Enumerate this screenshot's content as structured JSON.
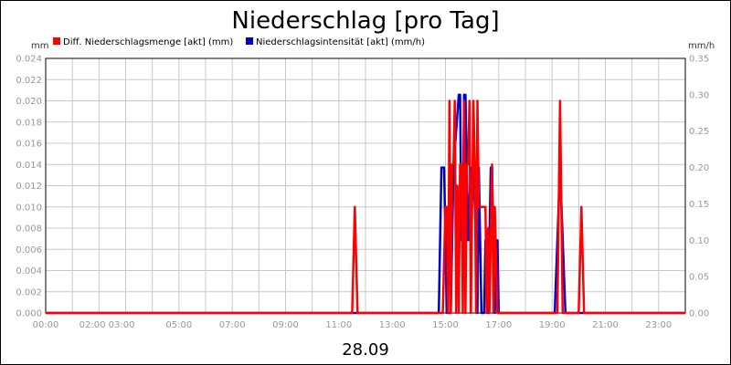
{
  "chart_data": {
    "type": "line",
    "title": "Niederschlag [pro Tag]",
    "xlabel": "28.09",
    "y_left": {
      "unit": "mm",
      "range": [
        0,
        0.024
      ],
      "ticks": [
        "0.000",
        "0.002",
        "0.004",
        "0.006",
        "0.008",
        "0.010",
        "0.012",
        "0.014",
        "0.016",
        "0.018",
        "0.020",
        "0.022",
        "0.024"
      ]
    },
    "y_right": {
      "unit": "mm/h",
      "range": [
        0,
        0.35
      ],
      "ticks": [
        "0.00",
        "0.05",
        "0.10",
        "0.15",
        "0.20",
        "0.25",
        "0.30",
        "0.35"
      ]
    },
    "x_range_hours": [
      0,
      24
    ],
    "x_tick_labels": [
      {
        "h": 0,
        "label": "00:00"
      },
      {
        "h": 2.3,
        "label": "02:00 03:00"
      },
      {
        "h": 5,
        "label": "05:00"
      },
      {
        "h": 7,
        "label": "07:00"
      },
      {
        "h": 9,
        "label": "09:00"
      },
      {
        "h": 11,
        "label": "11:00"
      },
      {
        "h": 13,
        "label": "13:00"
      },
      {
        "h": 15,
        "label": "15:00"
      },
      {
        "h": 17,
        "label": "17:00"
      },
      {
        "h": 19,
        "label": "19:00"
      },
      {
        "h": 21,
        "label": "21:00"
      },
      {
        "h": 23,
        "label": "23:00"
      }
    ],
    "grid": true,
    "legend_position": "top",
    "series": [
      {
        "name": "Diff. Niederschlagsmenge [akt] (mm)",
        "color": "#ff0000",
        "axis": "left",
        "points": [
          [
            0,
            0
          ],
          [
            11.5,
            0
          ],
          [
            11.6,
            0.01
          ],
          [
            11.7,
            0
          ],
          [
            14.9,
            0
          ],
          [
            15.0,
            0.01
          ],
          [
            15.05,
            0.01
          ],
          [
            15.1,
            0
          ],
          [
            15.15,
            0.02
          ],
          [
            15.2,
            0
          ],
          [
            15.25,
            0.014
          ],
          [
            15.3,
            0.014
          ],
          [
            15.35,
            0.02
          ],
          [
            15.4,
            0
          ],
          [
            15.45,
            0.012
          ],
          [
            15.5,
            0
          ],
          [
            15.55,
            0.014
          ],
          [
            15.6,
            0.014
          ],
          [
            15.65,
            0
          ],
          [
            15.7,
            0.02
          ],
          [
            15.75,
            0
          ],
          [
            15.8,
            0.014
          ],
          [
            15.85,
            0.014
          ],
          [
            15.9,
            0.02
          ],
          [
            15.95,
            0
          ],
          [
            16.05,
            0.02
          ],
          [
            16.1,
            0.014
          ],
          [
            16.15,
            0
          ],
          [
            16.2,
            0.02
          ],
          [
            16.25,
            0.01
          ],
          [
            16.5,
            0.01
          ],
          [
            16.55,
            0
          ],
          [
            16.6,
            0.008
          ],
          [
            16.65,
            0
          ],
          [
            16.75,
            0.014
          ],
          [
            16.8,
            0
          ],
          [
            16.85,
            0.01
          ],
          [
            16.95,
            0
          ],
          [
            19.2,
            0
          ],
          [
            19.3,
            0.02
          ],
          [
            19.4,
            0
          ],
          [
            20.0,
            0
          ],
          [
            20.1,
            0.01
          ],
          [
            20.2,
            0
          ],
          [
            24,
            0
          ]
        ]
      },
      {
        "name": "Niederschlagsintensität [akt] (mm/h)",
        "color": "#0000cc",
        "axis": "right",
        "points": [
          [
            0,
            0
          ],
          [
            14.75,
            0
          ],
          [
            14.85,
            0.2
          ],
          [
            14.95,
            0.2
          ],
          [
            15.05,
            0
          ],
          [
            15.2,
            0
          ],
          [
            15.3,
            0.2
          ],
          [
            15.4,
            0.25
          ],
          [
            15.5,
            0.3
          ],
          [
            15.55,
            0.3
          ],
          [
            15.6,
            0.1
          ],
          [
            15.65,
            0.1
          ],
          [
            15.7,
            0.3
          ],
          [
            15.75,
            0.3
          ],
          [
            15.85,
            0.1
          ],
          [
            15.95,
            0.2
          ],
          [
            16.05,
            0.2
          ],
          [
            16.15,
            0.1
          ],
          [
            16.2,
            0
          ],
          [
            16.25,
            0.2
          ],
          [
            16.35,
            0
          ],
          [
            16.45,
            0
          ],
          [
            16.5,
            0.1
          ],
          [
            16.55,
            0.1
          ],
          [
            16.6,
            0
          ],
          [
            16.7,
            0.2
          ],
          [
            16.75,
            0.2
          ],
          [
            16.85,
            0
          ],
          [
            16.95,
            0.1
          ],
          [
            17.0,
            0
          ],
          [
            19.1,
            0
          ],
          [
            19.3,
            0.2
          ],
          [
            19.5,
            0
          ],
          [
            24,
            0
          ]
        ]
      }
    ]
  }
}
